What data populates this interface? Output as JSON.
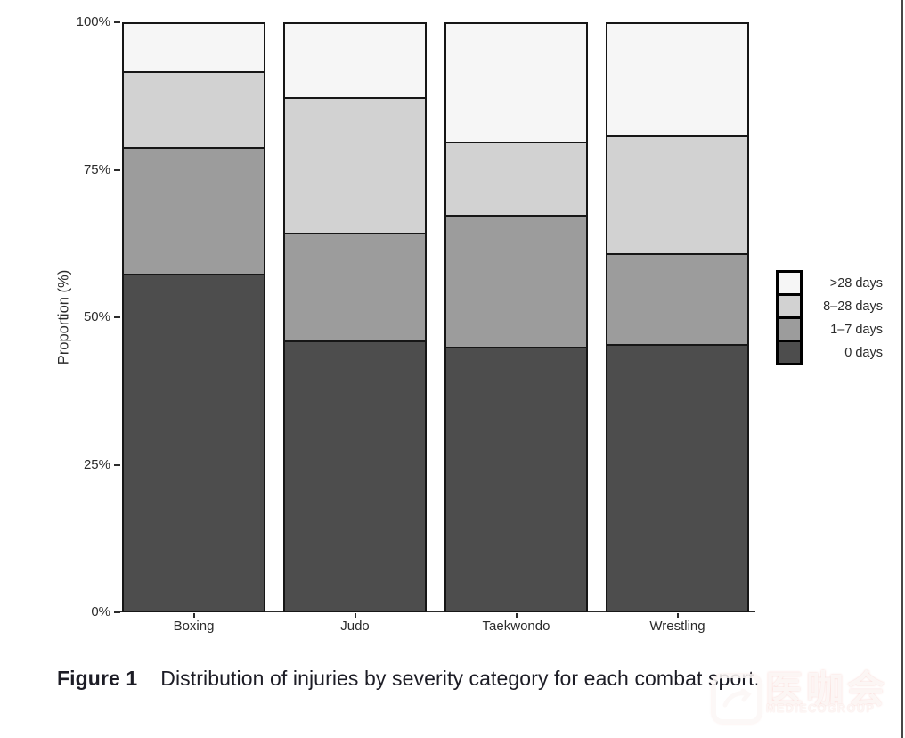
{
  "chart_data": {
    "type": "bar",
    "stacked": true,
    "units": "percent",
    "title": "",
    "xlabel": "",
    "ylabel": "Proportion (%)",
    "categories": [
      "Boxing",
      "Judo",
      "Taekwondo",
      "Wrestling"
    ],
    "series": [
      {
        "name": "0 days",
        "color": "#4d4d4d",
        "values": [
          57.5,
          46.0,
          45.0,
          45.5
        ]
      },
      {
        "name": "1–7 days",
        "color": "#9c9c9c",
        "values": [
          21.5,
          18.5,
          22.5,
          15.5
        ]
      },
      {
        "name": "8–28 days",
        "color": "#d2d2d2",
        "values": [
          13.0,
          23.0,
          12.5,
          20.0
        ]
      },
      {
        "name": ">28 days",
        "color": "#f6f6f6",
        "values": [
          8.0,
          12.5,
          20.0,
          19.0
        ]
      }
    ],
    "y_ticks": [
      {
        "label": "0%",
        "value": 0
      },
      {
        "label": "25%",
        "value": 25
      },
      {
        "label": "50%",
        "value": 50
      },
      {
        "label": "75%",
        "value": 75
      },
      {
        "label": "100%",
        "value": 100
      }
    ],
    "ylim": [
      0,
      100
    ],
    "grid": false,
    "legend_position": "right",
    "legend_order": [
      ">28 days",
      "8–28 days",
      "1–7 days",
      "0 days"
    ],
    "bar_border_color": "#161616"
  },
  "figure": {
    "caption_label": "Figure 1",
    "caption_text": "Distribution of injuries by severity category for each combat sport."
  },
  "watermark": {
    "text_zh": "医咖会",
    "text_en": "MEDIECOGROUP",
    "color": "#ffffff"
  }
}
